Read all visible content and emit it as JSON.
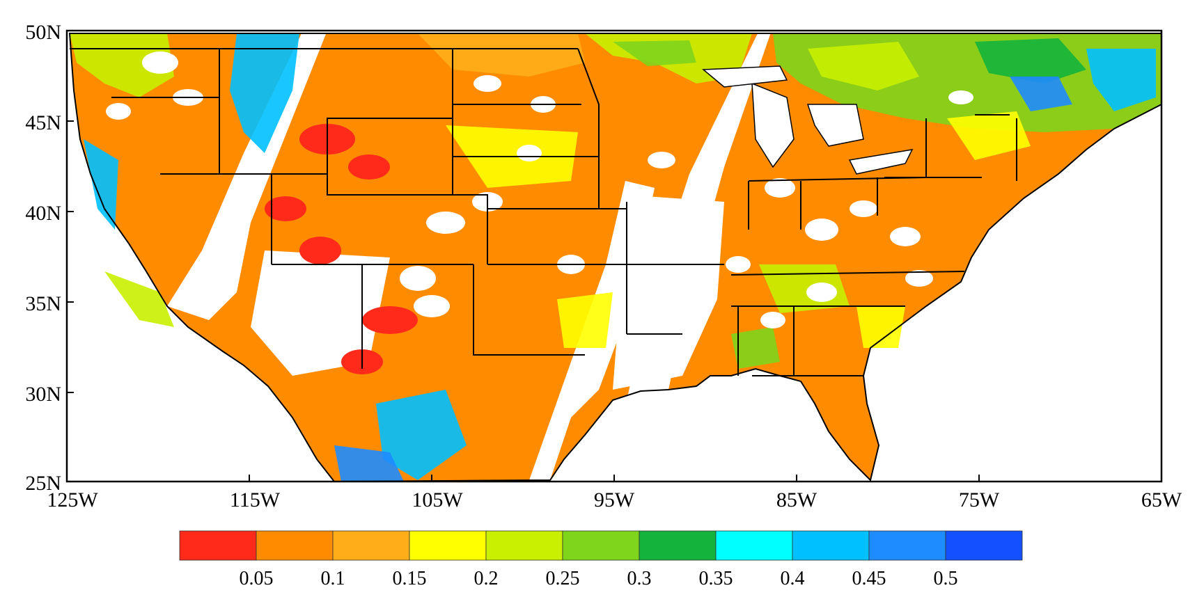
{
  "axes": {
    "lat_ticks": [
      "50N",
      "45N",
      "40N",
      "35N",
      "30N",
      "25N"
    ],
    "lon_ticks": [
      "125W",
      "115W",
      "105W",
      "95W",
      "85W",
      "75W",
      "65W"
    ],
    "lat_range": [
      25,
      50
    ],
    "lon_range": [
      -125,
      -65
    ]
  },
  "colorbar": {
    "colors": [
      "#ff2a1a",
      "#ff8c00",
      "#ffae1a",
      "#ffff00",
      "#c8f000",
      "#7fd41c",
      "#14b43c",
      "#00ffff",
      "#00c0ff",
      "#1e8cff",
      "#1450ff"
    ],
    "labels": [
      "0.05",
      "0.1",
      "0.15",
      "0.2",
      "0.25",
      "0.3",
      "0.35",
      "0.4",
      "0.45",
      "0.5"
    ]
  },
  "palette": {
    "red": "#ff2a1a",
    "orange": "#ff8c00",
    "light_orange": "#ffae1a",
    "yellow": "#ffff00",
    "yellow_green": "#c8f000",
    "green": "#7fd41c",
    "dark_green": "#14b43c",
    "cyan": "#00ffff",
    "sky": "#00c0ff",
    "blue": "#1e8cff",
    "deep_blue": "#1450ff"
  }
}
